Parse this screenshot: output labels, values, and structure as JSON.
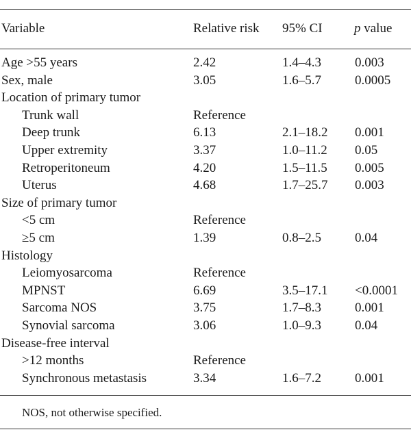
{
  "header": {
    "variable": "Variable",
    "relative_risk": "Relative risk",
    "ci": "95% CI",
    "p_italic": "p",
    "p_suffix": " value"
  },
  "rows": [
    {
      "variable": "Age >55 years",
      "rr": "2.42",
      "ci": "1.4–4.3",
      "p": "0.003",
      "indent": false
    },
    {
      "variable": "Sex, male",
      "rr": "3.05",
      "ci": "1.6–5.7",
      "p": "0.0005",
      "indent": false
    },
    {
      "variable": "Location of primary tumor",
      "rr": "",
      "ci": "",
      "p": "",
      "indent": false
    },
    {
      "variable": "Trunk wall",
      "rr": "Reference",
      "ci": "",
      "p": "",
      "indent": true
    },
    {
      "variable": "Deep trunk",
      "rr": "6.13",
      "ci": "2.1–18.2",
      "p": "0.001",
      "indent": true
    },
    {
      "variable": "Upper extremity",
      "rr": "3.37",
      "ci": "1.0–11.2",
      "p": "0.05",
      "indent": true
    },
    {
      "variable": "Retroperitoneum",
      "rr": "4.20",
      "ci": "1.5–11.5",
      "p": "0.005",
      "indent": true
    },
    {
      "variable": "Uterus",
      "rr": "4.68",
      "ci": "1.7–25.7",
      "p": "0.003",
      "indent": true
    },
    {
      "variable": "Size of primary tumor",
      "rr": "",
      "ci": "",
      "p": "",
      "indent": false
    },
    {
      "variable": "<5 cm",
      "rr": "Reference",
      "ci": "",
      "p": "",
      "indent": true
    },
    {
      "variable": "≥5 cm",
      "rr": "1.39",
      "ci": "0.8–2.5",
      "p": "0.04",
      "indent": true
    },
    {
      "variable": "Histology",
      "rr": "",
      "ci": "",
      "p": "",
      "indent": false
    },
    {
      "variable": "Leiomyosarcoma",
      "rr": "Reference",
      "ci": "",
      "p": "",
      "indent": true
    },
    {
      "variable": "MPNST",
      "rr": "6.69",
      "ci": "3.5–17.1",
      "p": "<0.0001",
      "indent": true
    },
    {
      "variable": "Sarcoma NOS",
      "rr": "3.75",
      "ci": "1.7–8.3",
      "p": "0.001",
      "indent": true
    },
    {
      "variable": "Synovial sarcoma",
      "rr": "3.06",
      "ci": "1.0–9.3",
      "p": "0.04",
      "indent": true
    },
    {
      "variable": "Disease-free interval",
      "rr": "",
      "ci": "",
      "p": "",
      "indent": false
    },
    {
      "variable": ">12 months",
      "rr": "Reference",
      "ci": "",
      "p": "",
      "indent": true
    },
    {
      "variable": "Synchronous metastasis",
      "rr": "3.34",
      "ci": "1.6–7.2",
      "p": "0.001",
      "indent": true
    }
  ],
  "footnote": "NOS, not otherwise specified."
}
